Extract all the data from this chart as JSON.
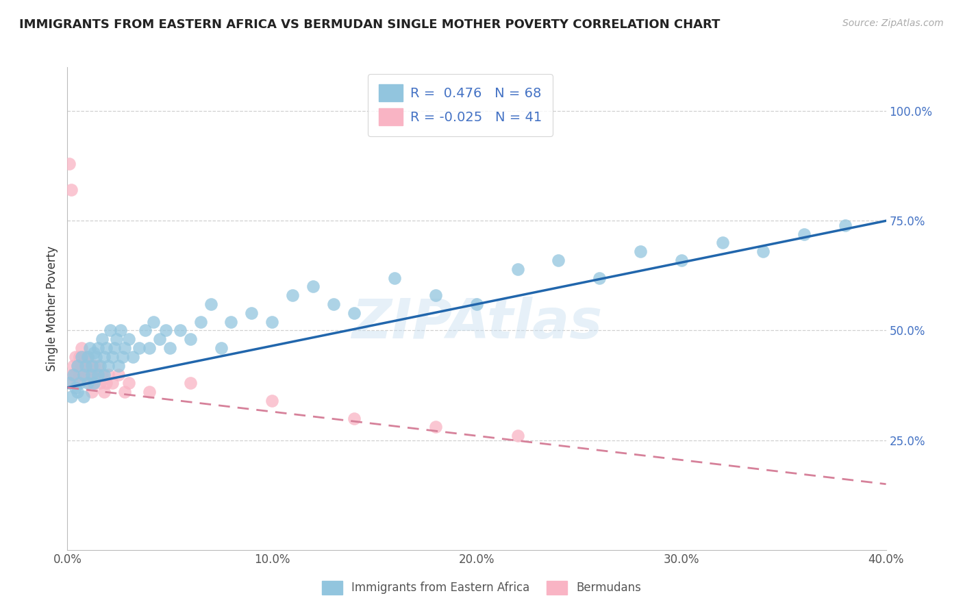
{
  "title": "IMMIGRANTS FROM EASTERN AFRICA VS BERMUDAN SINGLE MOTHER POVERTY CORRELATION CHART",
  "source_text": "Source: ZipAtlas.com",
  "ylabel": "Single Mother Poverty",
  "watermark": "ZIPAtlas",
  "xlim": [
    0.0,
    0.4
  ],
  "ylim": [
    0.0,
    1.1
  ],
  "xtick_labels": [
    "0.0%",
    "10.0%",
    "20.0%",
    "30.0%",
    "40.0%"
  ],
  "xtick_vals": [
    0.0,
    0.1,
    0.2,
    0.3,
    0.4
  ],
  "ytick_labels": [
    "25.0%",
    "50.0%",
    "75.0%",
    "100.0%"
  ],
  "ytick_vals": [
    0.25,
    0.5,
    0.75,
    1.0
  ],
  "blue_color": "#92c5de",
  "pink_color": "#f9b4c4",
  "blue_line_color": "#2166ac",
  "pink_line_color": "#d6819a",
  "legend_text_color": "#4472c4",
  "R_blue": 0.476,
  "N_blue": 68,
  "R_pink": -0.025,
  "N_pink": 41,
  "blue_scatter_x": [
    0.001,
    0.002,
    0.003,
    0.004,
    0.005,
    0.005,
    0.006,
    0.007,
    0.008,
    0.008,
    0.009,
    0.01,
    0.01,
    0.011,
    0.012,
    0.012,
    0.013,
    0.013,
    0.014,
    0.015,
    0.015,
    0.016,
    0.017,
    0.018,
    0.018,
    0.019,
    0.02,
    0.021,
    0.022,
    0.023,
    0.024,
    0.025,
    0.026,
    0.027,
    0.028,
    0.03,
    0.032,
    0.035,
    0.038,
    0.04,
    0.042,
    0.045,
    0.048,
    0.05,
    0.055,
    0.06,
    0.065,
    0.07,
    0.075,
    0.08,
    0.09,
    0.1,
    0.11,
    0.12,
    0.13,
    0.14,
    0.16,
    0.18,
    0.2,
    0.22,
    0.24,
    0.26,
    0.28,
    0.3,
    0.32,
    0.34,
    0.36,
    0.38
  ],
  "blue_scatter_y": [
    0.38,
    0.35,
    0.4,
    0.37,
    0.42,
    0.36,
    0.38,
    0.44,
    0.4,
    0.35,
    0.42,
    0.38,
    0.44,
    0.46,
    0.4,
    0.42,
    0.45,
    0.38,
    0.44,
    0.4,
    0.46,
    0.42,
    0.48,
    0.44,
    0.4,
    0.46,
    0.42,
    0.5,
    0.44,
    0.46,
    0.48,
    0.42,
    0.5,
    0.44,
    0.46,
    0.48,
    0.44,
    0.46,
    0.5,
    0.46,
    0.52,
    0.48,
    0.5,
    0.46,
    0.5,
    0.48,
    0.52,
    0.56,
    0.46,
    0.52,
    0.54,
    0.52,
    0.58,
    0.6,
    0.56,
    0.54,
    0.62,
    0.58,
    0.56,
    0.64,
    0.66,
    0.62,
    0.68,
    0.66,
    0.7,
    0.68,
    0.72,
    0.74
  ],
  "pink_scatter_x": [
    0.001,
    0.002,
    0.002,
    0.003,
    0.003,
    0.004,
    0.004,
    0.005,
    0.005,
    0.006,
    0.006,
    0.007,
    0.007,
    0.008,
    0.008,
    0.009,
    0.01,
    0.01,
    0.011,
    0.011,
    0.012,
    0.012,
    0.013,
    0.013,
    0.014,
    0.015,
    0.016,
    0.017,
    0.018,
    0.019,
    0.02,
    0.022,
    0.025,
    0.028,
    0.03,
    0.04,
    0.06,
    0.1,
    0.14,
    0.18,
    0.22
  ],
  "pink_scatter_y": [
    0.88,
    0.82,
    0.4,
    0.42,
    0.38,
    0.44,
    0.4,
    0.42,
    0.38,
    0.44,
    0.4,
    0.46,
    0.42,
    0.44,
    0.4,
    0.42,
    0.44,
    0.4,
    0.42,
    0.38,
    0.4,
    0.36,
    0.42,
    0.38,
    0.4,
    0.42,
    0.38,
    0.4,
    0.36,
    0.38,
    0.4,
    0.38,
    0.4,
    0.36,
    0.38,
    0.36,
    0.38,
    0.34,
    0.3,
    0.28,
    0.26
  ],
  "blue_line_x": [
    0.0,
    0.4
  ],
  "blue_line_y": [
    0.37,
    0.75
  ],
  "pink_line_x": [
    0.0,
    0.4
  ],
  "pink_line_y": [
    0.37,
    0.15
  ]
}
